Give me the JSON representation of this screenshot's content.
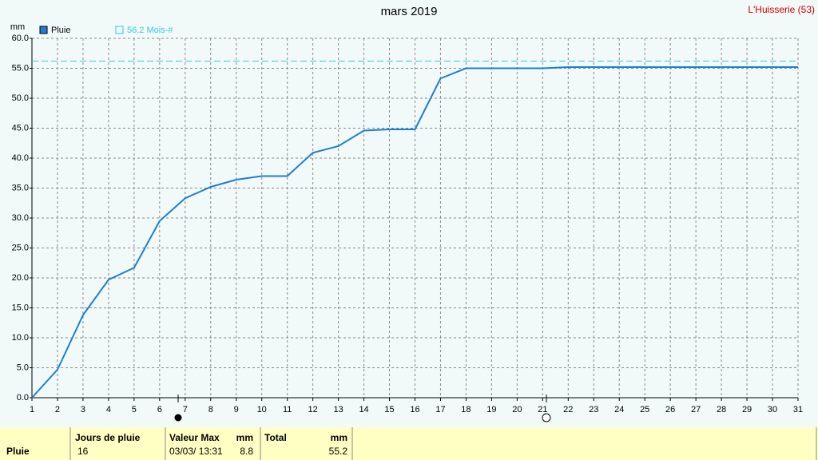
{
  "chart_data": {
    "type": "line",
    "title": "mars 2019",
    "station_label": "L'Huisserie (53)",
    "ylabel": "mm",
    "x": [
      1,
      2,
      3,
      4,
      5,
      6,
      7,
      8,
      9,
      10,
      11,
      12,
      13,
      14,
      15,
      16,
      17,
      18,
      19,
      20,
      21,
      22,
      23,
      24,
      25,
      26,
      27,
      28,
      29,
      30,
      31
    ],
    "series": [
      {
        "name": "Pluie",
        "color": "#1c7ed6",
        "values": [
          0,
          4.7,
          13.8,
          19.7,
          21.7,
          29.5,
          33.3,
          35.2,
          36.4,
          37.0,
          37.0,
          40.9,
          42.0,
          44.6,
          44.8,
          44.8,
          53.3,
          55.0,
          55.0,
          55.0,
          55.0,
          55.2,
          55.2,
          55.2,
          55.2,
          55.2,
          55.2,
          55.2,
          55.2,
          55.2,
          55.2
        ]
      }
    ],
    "reference": {
      "value": 56.2,
      "label": "56.2 Mois-#",
      "color": "#33ccdd"
    },
    "xlim": [
      1,
      31
    ],
    "xticks": [
      1,
      2,
      3,
      4,
      5,
      6,
      7,
      8,
      9,
      10,
      11,
      12,
      13,
      14,
      15,
      16,
      17,
      18,
      19,
      20,
      21,
      22,
      23,
      24,
      25,
      26,
      27,
      28,
      29,
      30,
      31
    ],
    "ylim": [
      0,
      60
    ],
    "yticks": [
      {
        "value": 0,
        "label": "0.0"
      },
      {
        "value": 5,
        "label": "5.0"
      },
      {
        "value": 10,
        "label": "10.0"
      },
      {
        "value": 15,
        "label": "15.0"
      },
      {
        "value": 20,
        "label": "20.0"
      },
      {
        "value": 25,
        "label": "25.0"
      },
      {
        "value": 30,
        "label": "30.0"
      },
      {
        "value": 35,
        "label": "35.0"
      },
      {
        "value": 40,
        "label": "40.0"
      },
      {
        "value": 45,
        "label": "45.0"
      },
      {
        "value": 50,
        "label": "50.0"
      },
      {
        "value": 55,
        "label": "55.0"
      },
      {
        "value": 60,
        "label": "60.0"
      }
    ],
    "grid": true
  },
  "table": {
    "row_label": "Pluie",
    "jours_de_pluie": {
      "header": "Jours de pluie",
      "value": 16
    },
    "valeur_max": {
      "header": "Valeur Max",
      "unit": "mm",
      "date": "03/03/ 13:31",
      "value": 8.8
    },
    "total": {
      "header": "Total",
      "unit": "mm",
      "value": 55.2
    }
  }
}
